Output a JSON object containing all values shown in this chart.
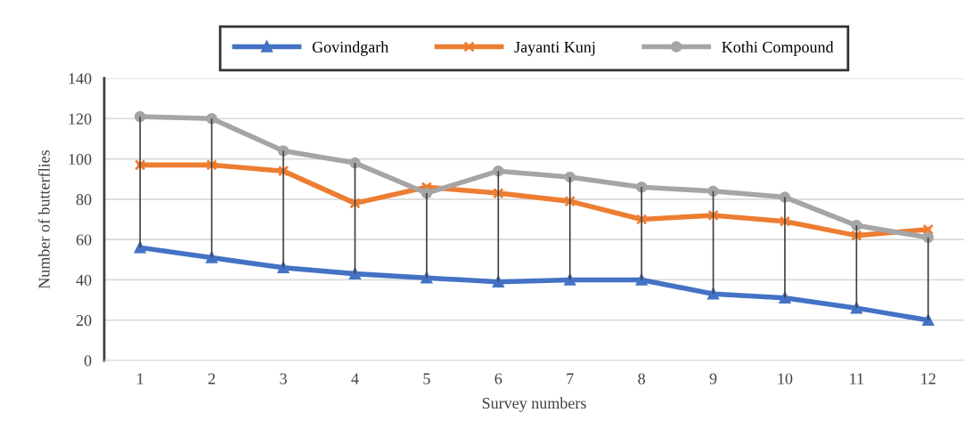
{
  "chart_data": {
    "type": "line",
    "xlabel": "Survey numbers",
    "ylabel": "Number of butterflies",
    "categories": [
      "1",
      "2",
      "3",
      "4",
      "5",
      "6",
      "7",
      "8",
      "9",
      "10",
      "11",
      "12"
    ],
    "series": [
      {
        "name": "Govindgarh",
        "color": "#4472c4",
        "marker": "triangle",
        "values": [
          56,
          51,
          46,
          43,
          41,
          39,
          40,
          40,
          33,
          31,
          26,
          20
        ]
      },
      {
        "name": "Jayanti Kunj",
        "color": "#ed7d31",
        "marker": "cross",
        "values": [
          97,
          97,
          94,
          78,
          86,
          83,
          79,
          70,
          72,
          69,
          62,
          65
        ]
      },
      {
        "name": "Kothi Compound",
        "color": "#a5a5a5",
        "marker": "circle",
        "values": [
          121,
          120,
          104,
          98,
          83,
          94,
          91,
          86,
          84,
          81,
          67,
          61
        ],
        "errors": [
          [
            56,
            121
          ],
          [
            51,
            120
          ],
          [
            46,
            104
          ],
          [
            43,
            98
          ],
          [
            41,
            83
          ],
          [
            39,
            94
          ],
          [
            40,
            91
          ],
          [
            40,
            86
          ],
          [
            33,
            84
          ],
          [
            31,
            81
          ],
          [
            26,
            67
          ],
          [
            20,
            61
          ]
        ]
      }
    ],
    "ylim": [
      0,
      140
    ],
    "yticks": [
      0,
      20,
      40,
      60,
      80,
      100,
      120,
      140
    ],
    "grid": "y",
    "legend": "top"
  }
}
